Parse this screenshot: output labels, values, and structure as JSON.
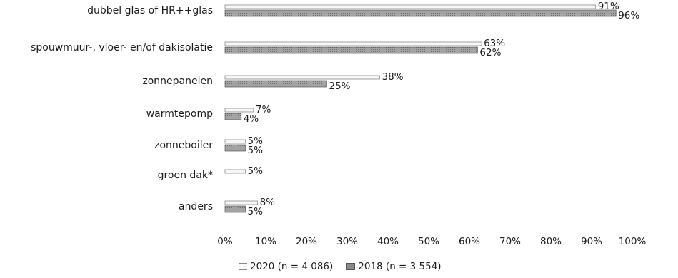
{
  "chart_data": {
    "type": "bar",
    "orientation": "horizontal",
    "categories": [
      "dubbel glas of HR++glas",
      "spouwmuur-, vloer- en/of dakisolatie",
      "zonnepanelen",
      "warmtepomp",
      "zonneboiler",
      "groen dak*",
      "anders"
    ],
    "series": [
      {
        "name": "2020 (n = 4 086)",
        "values": [
          91,
          63,
          38,
          7,
          5,
          5,
          8
        ],
        "labels": [
          "91%",
          "63%",
          "38%",
          "7%",
          "5%",
          "5%",
          "8%"
        ]
      },
      {
        "name": "2018 (n = 3 554)",
        "values": [
          96,
          62,
          25,
          4,
          5,
          null,
          5
        ],
        "labels": [
          "96%",
          "62%",
          "25%",
          "4%",
          "5%",
          "",
          "5%"
        ]
      }
    ],
    "xlim": [
      0,
      100
    ],
    "x_ticks": [
      "0%",
      "10%",
      "20%",
      "30%",
      "40%",
      "50%",
      "60%",
      "70%",
      "80%",
      "90%",
      "100%"
    ],
    "legend_position": "bottom",
    "grid": false,
    "colors": {
      "2020": "#f7f7f7",
      "2018": "#9a9a9a"
    }
  },
  "legend": {
    "items": [
      "2020 (n = 4 086)",
      "2018 (n = 3 554)"
    ]
  }
}
